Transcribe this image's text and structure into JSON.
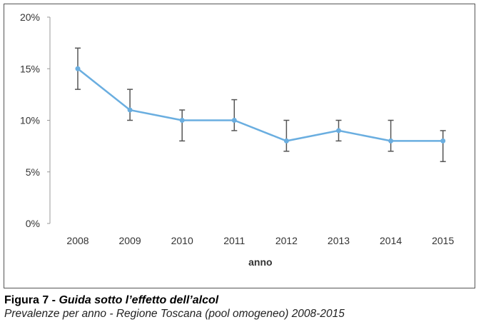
{
  "chart_data": {
    "type": "line",
    "title": "",
    "xlabel": "anno",
    "ylabel": "",
    "categories": [
      "2008",
      "2009",
      "2010",
      "2011",
      "2012",
      "2013",
      "2014",
      "2015"
    ],
    "series": [
      {
        "values": [
          15,
          11,
          10,
          10,
          8,
          9,
          8,
          8
        ],
        "error_low": [
          13,
          10,
          8,
          9,
          7,
          8,
          7,
          6
        ],
        "error_high": [
          17,
          13,
          11,
          12,
          10,
          10,
          10,
          9
        ],
        "color": "#6aaee0"
      }
    ],
    "ylim": [
      0,
      20
    ],
    "yticks": [
      0,
      5,
      10,
      15,
      20
    ],
    "ytick_labels": [
      "0%",
      "5%",
      "10%",
      "15%",
      "20%"
    ],
    "grid": false,
    "legend": "none",
    "error_bar_color": "#555555"
  },
  "caption": {
    "figure_label": "Figura 7",
    "separator": " - ",
    "title": "Guida sotto l’effetto dell’alcol",
    "subtitle": "Prevalenze per anno - Regione Toscana (pool omogeneo) 2008-2015"
  }
}
